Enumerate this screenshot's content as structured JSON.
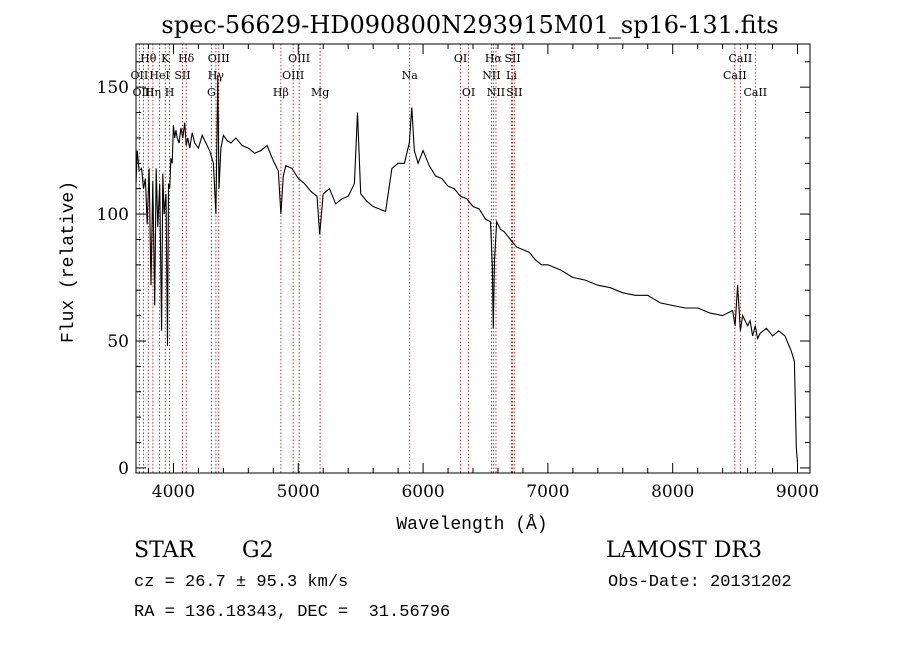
{
  "chart_data": {
    "type": "line",
    "title": "spec-56629-HD090800N293915M01_sp16-131.fits",
    "xlabel": "Wavelength (Å)",
    "ylabel": "Flux (relative)",
    "xlim": [
      3700,
      9100
    ],
    "ylim": [
      -2,
      167
    ],
    "xticks": [
      4000,
      5000,
      6000,
      7000,
      8000,
      9000
    ],
    "yticks": [
      0,
      50,
      100,
      150
    ],
    "series": [
      {
        "name": "spectrum",
        "x": [
          3700,
          3710,
          3725,
          3745,
          3760,
          3775,
          3790,
          3805,
          3820,
          3835,
          3850,
          3862,
          3875,
          3890,
          3905,
          3915,
          3925,
          3940,
          3952,
          3960,
          3970,
          3980,
          3990,
          4000,
          4010,
          4020,
          4030,
          4045,
          4060,
          4075,
          4090,
          4102,
          4115,
          4130,
          4150,
          4170,
          4200,
          4230,
          4260,
          4290,
          4320,
          4340,
          4355,
          4365,
          4380,
          4400,
          4430,
          4460,
          4500,
          4550,
          4600,
          4650,
          4700,
          4750,
          4800,
          4840,
          4861,
          4880,
          4900,
          4950,
          5000,
          5050,
          5100,
          5150,
          5172,
          5200,
          5250,
          5300,
          5350,
          5400,
          5450,
          5475,
          5500,
          5550,
          5600,
          5650,
          5700,
          5750,
          5800,
          5850,
          5890,
          5910,
          5930,
          5960,
          6000,
          6050,
          6100,
          6150,
          6200,
          6250,
          6300,
          6350,
          6400,
          6450,
          6500,
          6540,
          6555,
          6563,
          6572,
          6590,
          6620,
          6650,
          6700,
          6750,
          6800,
          6850,
          6900,
          6950,
          7000,
          7100,
          7200,
          7300,
          7400,
          7500,
          7600,
          7700,
          7800,
          7900,
          8000,
          8100,
          8200,
          8300,
          8400,
          8480,
          8500,
          8520,
          8542,
          8560,
          8600,
          8620,
          8640,
          8662,
          8680,
          8700,
          8750,
          8800,
          8850,
          8900,
          8950,
          8975,
          8990,
          9000
        ],
        "values": [
          112,
          125,
          117,
          118,
          110,
          114,
          96,
          118,
          72,
          113,
          64,
          118,
          95,
          112,
          54,
          116,
          100,
          108,
          48,
          112,
          110,
          122,
          120,
          135,
          130,
          133,
          130,
          128,
          134,
          130,
          136,
          127,
          130,
          126,
          132,
          128,
          126,
          131,
          128,
          125,
          120,
          100,
          155,
          110,
          126,
          131,
          129,
          128,
          130,
          127,
          126,
          124,
          125,
          127,
          121,
          117,
          100,
          115,
          119,
          118,
          114,
          112,
          109,
          107,
          92,
          108,
          110,
          104,
          106,
          107,
          112,
          140,
          108,
          105,
          103,
          102,
          101,
          118,
          120,
          120,
          128,
          142,
          125,
          120,
          125,
          119,
          115,
          114,
          111,
          110,
          107,
          106,
          103,
          102,
          98,
          97,
          80,
          55,
          82,
          97,
          94,
          93,
          90,
          87,
          86,
          85,
          82,
          80,
          80,
          78,
          75,
          74,
          72,
          71,
          69,
          68,
          68,
          65,
          64,
          63,
          63,
          61,
          60,
          62,
          56,
          72,
          54,
          60,
          56,
          58,
          52,
          56,
          51,
          53,
          55,
          52,
          54,
          52,
          46,
          42,
          8,
          2
        ]
      }
    ],
    "lines": [
      {
        "name": "Hθ",
        "wave": 3798,
        "row": 0
      },
      {
        "name": "OII",
        "wave": 3727,
        "row": 1
      },
      {
        "name": "OIII",
        "wave": 3760,
        "row": 2
      },
      {
        "name": "Hη",
        "wave": 3835,
        "row": 2
      },
      {
        "name": "K",
        "wave": 3934,
        "row": 0
      },
      {
        "name": "HeI",
        "wave": 3889,
        "row": 1
      },
      {
        "name": "H",
        "wave": 3969,
        "row": 2
      },
      {
        "name": "SII",
        "wave": 4072,
        "row": 1
      },
      {
        "name": "Hδ",
        "wave": 4102,
        "row": 0
      },
      {
        "name": "OIII",
        "wave": 4363,
        "row": 0
      },
      {
        "name": "Hγ",
        "wave": 4340,
        "row": 1
      },
      {
        "name": "G",
        "wave": 4304,
        "row": 2
      },
      {
        "name": "Hβ",
        "wave": 4861,
        "row": 2
      },
      {
        "name": "OIII",
        "wave": 5007,
        "row": 0
      },
      {
        "name": "OIII",
        "wave": 4959,
        "row": 1
      },
      {
        "name": "Mg",
        "wave": 5175,
        "row": 2
      },
      {
        "name": "Na",
        "wave": 5893,
        "row": 1
      },
      {
        "name": "OI",
        "wave": 6300,
        "row": 0
      },
      {
        "name": "OI",
        "wave": 6364,
        "row": 2
      },
      {
        "name": "Hα",
        "wave": 6563,
        "row": 0
      },
      {
        "name": "NII",
        "wave": 6548,
        "row": 1
      },
      {
        "name": "NII",
        "wave": 6584,
        "row": 2
      },
      {
        "name": "SII",
        "wave": 6717,
        "row": 0
      },
      {
        "name": "Li",
        "wave": 6708,
        "row": 1
      },
      {
        "name": "SII",
        "wave": 6731,
        "row": 2
      },
      {
        "name": "CaII",
        "wave": 8542,
        "row": 0
      },
      {
        "name": "CaII",
        "wave": 8498,
        "row": 1
      },
      {
        "name": "CaII",
        "wave": 8662,
        "row": 2
      }
    ]
  },
  "info": {
    "class_label": "STAR",
    "subclass": "G2",
    "survey": "LAMOST DR3",
    "redshift": "cz = 26.7 ± 95.3 km/s",
    "obs_date": "Obs-Date: 20131202",
    "coords": "RA = 136.18343, DEC =  31.56796"
  },
  "colors": {
    "line_marker": "#b22222",
    "spectrum": "#000000",
    "axes": "#000000"
  }
}
